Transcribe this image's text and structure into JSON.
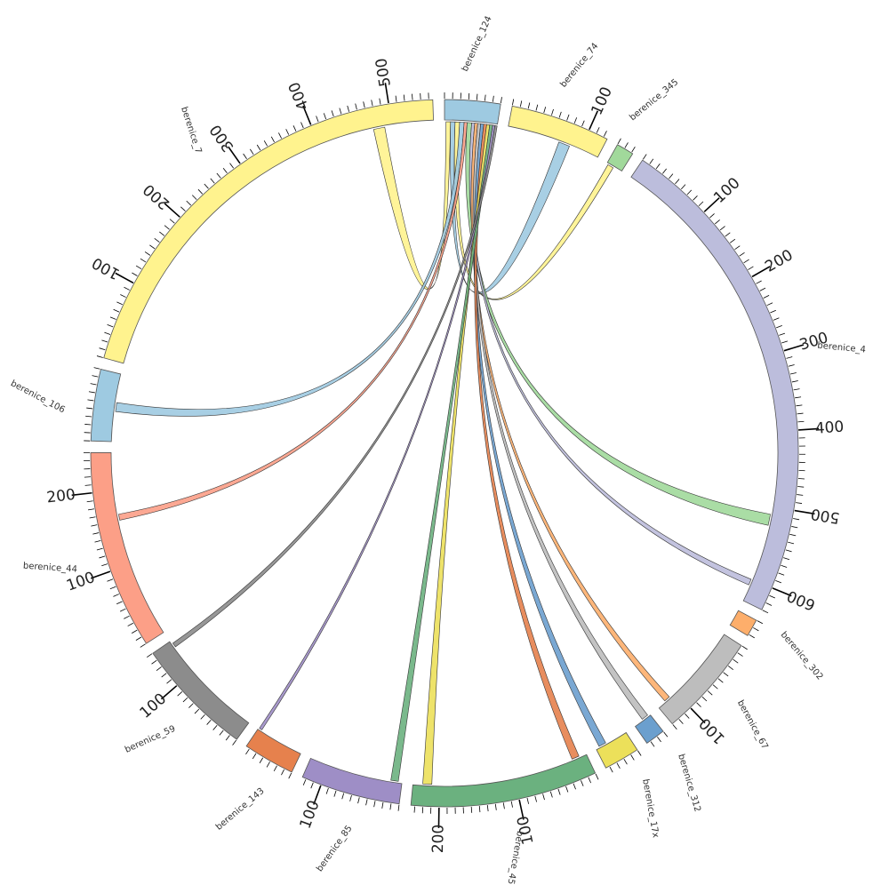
{
  "chart_data": {
    "type": "chord",
    "segments": [
      {
        "name": "berenice_124",
        "label": "berenice_124",
        "length": 70,
        "color": "#9ecae1",
        "labelled_ticks": []
      },
      {
        "name": "berenice_74",
        "label": "berenice_74",
        "length": 125,
        "color": "#fff38e",
        "labelled_ticks": [
          100
        ]
      },
      {
        "name": "berenice_345",
        "label": "berenice_345",
        "length": 22,
        "color": "#a1d99b",
        "labelled_ticks": []
      },
      {
        "name": "berenice_4",
        "label": "berenice_4",
        "length": 630,
        "color": "#bcbddc",
        "labelled_ticks": [
          100,
          200,
          300,
          400,
          500,
          600
        ]
      },
      {
        "name": "berenice_302",
        "label": "berenice_302",
        "length": 22,
        "color": "#fdae6b",
        "labelled_ticks": []
      },
      {
        "name": "berenice_67",
        "label": "berenice_67",
        "length": 130,
        "color": "#bdbdbd",
        "labelled_ticks": [
          100
        ]
      },
      {
        "name": "berenice_312",
        "label": "berenice_312",
        "length": 25,
        "color": "#6b9fce",
        "labelled_ticks": []
      },
      {
        "name": "berenice_17x",
        "label": "berenice_17x",
        "length": 45,
        "color": "#ece05a",
        "labelled_ticks": []
      },
      {
        "name": "berenice_45",
        "label": "berenice_45",
        "length": 235,
        "color": "#6bb17f",
        "labelled_ticks": [
          100,
          200
        ]
      },
      {
        "name": "berenice_85",
        "label": "berenice_85",
        "length": 125,
        "color": "#9e8ec6",
        "labelled_ticks": [
          100
        ]
      },
      {
        "name": "berenice_143",
        "label": "berenice_143",
        "length": 65,
        "color": "#e6814d",
        "labelled_ticks": []
      },
      {
        "name": "berenice_59",
        "label": "berenice_59",
        "length": 150,
        "color": "#8c8c8c",
        "labelled_ticks": [
          100
        ]
      },
      {
        "name": "berenice_44",
        "label": "berenice_44",
        "length": 250,
        "color": "#fc9f87",
        "labelled_ticks": [
          100,
          200
        ]
      },
      {
        "name": "berenice_106",
        "label": "berenice_106",
        "length": 90,
        "color": "#9ecae1",
        "labelled_ticks": []
      },
      {
        "name": "berenice_7",
        "label": "berenice_7",
        "length": 555,
        "color": "#fff38e",
        "labelled_ticks": [
          100,
          200,
          300,
          400,
          500
        ]
      }
    ],
    "links": [
      {
        "source": "berenice_124",
        "target": "berenice_7",
        "source_range": [
          2,
          8
        ],
        "target_range": [
          475,
          490
        ],
        "color": "#fff38e"
      },
      {
        "source": "berenice_124",
        "target": "berenice_74",
        "source_range": [
          8,
          14
        ],
        "target_range": [
          70,
          85
        ],
        "color": "#9ecae1"
      },
      {
        "source": "berenice_124",
        "target": "berenice_345",
        "source_range": [
          14,
          20
        ],
        "target_range": [
          2,
          10
        ],
        "color": "#fff38e"
      },
      {
        "source": "berenice_124",
        "target": "berenice_106",
        "source_range": [
          20,
          26
        ],
        "target_range": [
          40,
          52
        ],
        "color": "#9ecae1"
      },
      {
        "source": "berenice_124",
        "target": "berenice_44",
        "source_range": [
          26,
          30
        ],
        "target_range": [
          160,
          168
        ],
        "color": "#fc9f87"
      },
      {
        "source": "berenice_124",
        "target": "berenice_4",
        "source_range": [
          30,
          36
        ],
        "target_range": [
          510,
          525
        ],
        "color": "#a1d99b"
      },
      {
        "source": "berenice_124",
        "target": "berenice_4",
        "source_range": [
          36,
          40
        ],
        "target_range": [
          600,
          608
        ],
        "color": "#bcbddc"
      },
      {
        "source": "berenice_124",
        "target": "berenice_67",
        "source_range": [
          40,
          44
        ],
        "target_range": [
          110,
          118
        ],
        "color": "#fdae6b"
      },
      {
        "source": "berenice_124",
        "target": "berenice_312",
        "source_range": [
          44,
          48
        ],
        "target_range": [
          3,
          12
        ],
        "color": "#bdbdbd"
      },
      {
        "source": "berenice_124",
        "target": "berenice_17x",
        "source_range": [
          48,
          52
        ],
        "target_range": [
          30,
          40
        ],
        "color": "#6b9fce"
      },
      {
        "source": "berenice_124",
        "target": "berenice_45",
        "source_range": [
          52,
          56
        ],
        "target_range": [
          10,
          20
        ],
        "color": "#e6814d"
      },
      {
        "source": "berenice_124",
        "target": "berenice_45",
        "source_range": [
          56,
          60
        ],
        "target_range": [
          210,
          222
        ],
        "color": "#ece05a"
      },
      {
        "source": "berenice_124",
        "target": "berenice_85",
        "source_range": [
          60,
          64
        ],
        "target_range": [
          5,
          15
        ],
        "color": "#6bb17f"
      },
      {
        "source": "berenice_124",
        "target": "berenice_143",
        "source_range": [
          64,
          67
        ],
        "target_range": [
          60,
          64
        ],
        "color": "#9e8ec6"
      },
      {
        "source": "berenice_124",
        "target": "berenice_59",
        "source_range": [
          67,
          70
        ],
        "target_range": [
          140,
          146
        ],
        "color": "#8c8c8c"
      }
    ],
    "tick_step": 10,
    "labelled_tick_step": 100
  }
}
